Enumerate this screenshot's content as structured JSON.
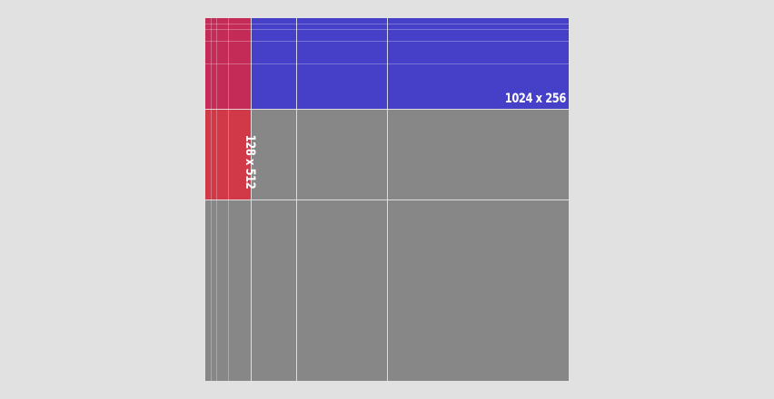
{
  "diagram": {
    "regions": [
      {
        "id": "wide",
        "label": "1024 x 256",
        "color": "#3a34d2"
      },
      {
        "id": "tall",
        "label": "128 x 512",
        "color": "#e3263a"
      }
    ],
    "background_color": "#878787",
    "page_background": "#e1e1e1",
    "gridline_color": "#ffffff"
  }
}
